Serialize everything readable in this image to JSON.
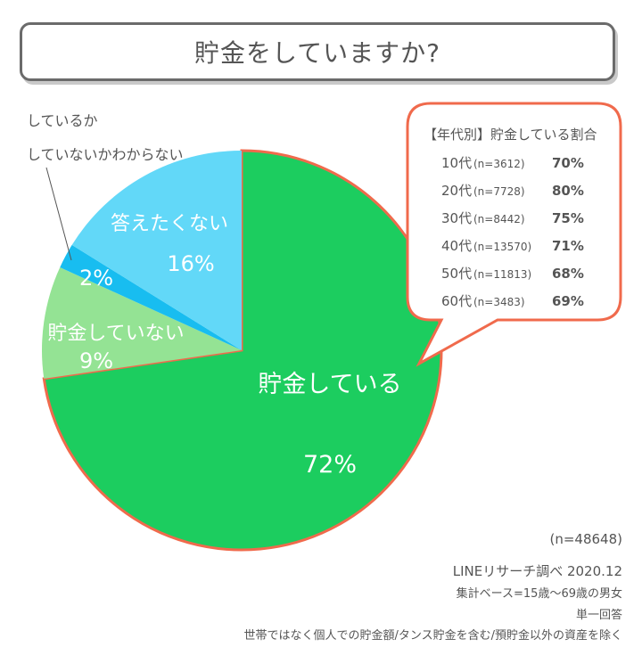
{
  "title": "貯金をしていますか?",
  "chart_data": {
    "type": "pie",
    "slices": [
      {
        "label": "貯金している",
        "value": 72,
        "display": "72%",
        "color": "#1ccd5f"
      },
      {
        "label": "貯金していない",
        "value": 9,
        "display": "9%",
        "color": "#94e394"
      },
      {
        "label": "しているかしていないかわからない",
        "value": 2,
        "display": "2%",
        "color": "#18bdf0"
      },
      {
        "label": "答えたくない",
        "value": 16,
        "display": "16%",
        "color": "#62d8f8"
      }
    ],
    "start": "12 o'clock",
    "direction": "clockwise"
  },
  "external_label": {
    "line1": "しているか",
    "line2": "していないかわからない"
  },
  "age_table": {
    "title": "【年代別】貯金している割合",
    "rows": [
      {
        "age": "10代",
        "n": "(n=3612)",
        "pct": "70%"
      },
      {
        "age": "20代",
        "n": "(n=7728)",
        "pct": "80%"
      },
      {
        "age": "30代",
        "n": "(n=8442)",
        "pct": "75%"
      },
      {
        "age": "40代",
        "n": "(n=13570)",
        "pct": "71%"
      },
      {
        "age": "50代",
        "n": "(n=11813)",
        "pct": "68%"
      },
      {
        "age": "60代",
        "n": "(n=3483)",
        "pct": "69%"
      }
    ]
  },
  "footer": {
    "n_total": "(n=48648)",
    "source": "LINEリサーチ調べ 2020.12",
    "base": "集計ベース=15歳～69歳の男女",
    "answer_type": "単一回答",
    "note": "世帯ではなく個人での貯金額/タンス貯金を含む/預貯金以外の資産を除く"
  },
  "colors": {
    "accent": "#f06a4c",
    "border_gray": "#6b6b6b"
  }
}
